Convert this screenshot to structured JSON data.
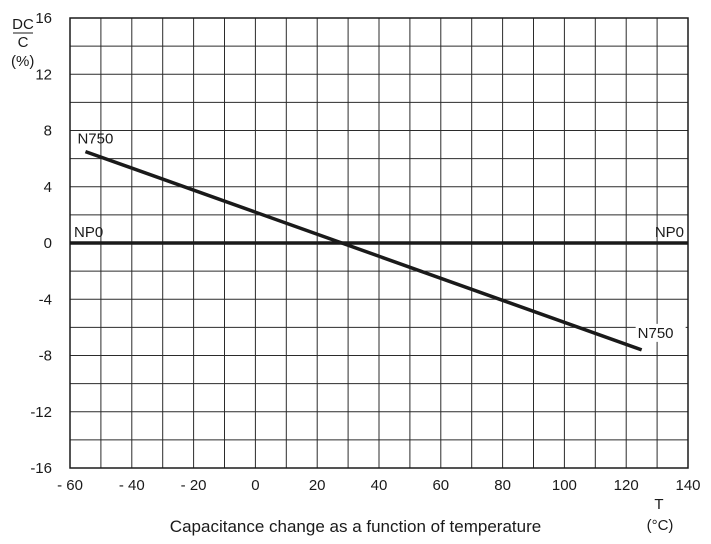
{
  "chart_data": {
    "type": "line",
    "title": "Capacitance change as a function of temperature",
    "ylabel_num": "DC",
    "ylabel_den": "C",
    "ylabel_unit": "(%)",
    "xlabel": "T",
    "xlabel_unit": "(°C)",
    "xlim": [
      -60,
      140
    ],
    "ylim": [
      -16,
      16
    ],
    "x_ticks": [
      -60,
      -40,
      -20,
      0,
      20,
      40,
      60,
      80,
      100,
      120,
      140
    ],
    "x_tick_labels": [
      "- 60",
      "- 40",
      "- 20",
      "0",
      "20",
      "40",
      "60",
      "80",
      "100",
      "120",
      "140"
    ],
    "y_ticks": [
      16,
      12,
      8,
      4,
      0,
      -4,
      -8,
      -12,
      -16
    ],
    "y_tick_labels": [
      "16",
      "12",
      "8",
      "4",
      "0",
      "-4",
      "-8",
      "-12",
      "-16"
    ],
    "grid_x_step": 10,
    "grid_y_step": 2,
    "grid": true,
    "series": [
      {
        "name": "N750",
        "x": [
          -55,
          125
        ],
        "y": [
          6.5,
          -7.6
        ],
        "label_start": "N750",
        "label_end": "N750"
      },
      {
        "name": "NP0",
        "x": [
          -60,
          140
        ],
        "y": [
          0,
          0
        ],
        "label_start": "NP0",
        "label_end": "NP0"
      }
    ]
  },
  "colors": {
    "line": "#1a1a1a",
    "grid": "#2b2b2b",
    "background": "#ffffff"
  }
}
